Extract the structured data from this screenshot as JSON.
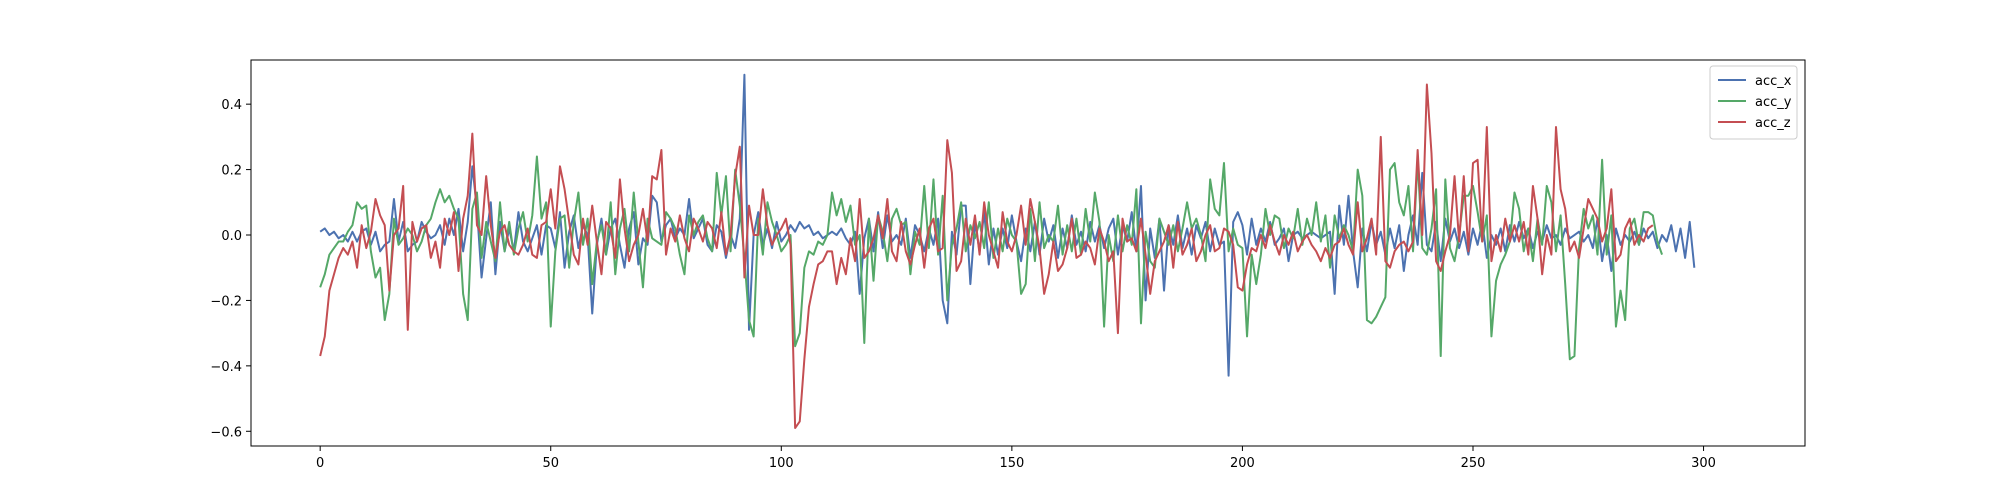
{
  "chart_data": {
    "type": "line",
    "title": "",
    "xlabel": "",
    "ylabel": "",
    "xlim": [
      -15,
      322
    ],
    "ylim": [
      -0.645,
      0.535
    ],
    "xticks": [
      0,
      50,
      100,
      150,
      200,
      250,
      300
    ],
    "yticks": [
      -0.6,
      -0.4,
      -0.2,
      0.0,
      0.2,
      0.4
    ],
    "xtick_labels": [
      "0",
      "50",
      "100",
      "150",
      "200",
      "250",
      "300"
    ],
    "ytick_labels": [
      "−0.6",
      "−0.4",
      "−0.2",
      "0.0",
      "0.2",
      "0.4"
    ],
    "grid": false,
    "legend_position": "top-right",
    "series": [
      {
        "name": "acc_x",
        "color": "#4c72b0",
        "values": [
          0.01,
          0.02,
          0.0,
          0.01,
          -0.01,
          0.0,
          -0.02,
          0.01,
          -0.02,
          0.01,
          0.02,
          -0.03,
          0.01,
          -0.05,
          -0.03,
          -0.02,
          0.11,
          -0.02,
          0.04,
          -0.05,
          -0.03,
          -0.02,
          0.04,
          0.01,
          -0.01,
          0.0,
          0.03,
          -0.03,
          0.05,
          0.0,
          0.08,
          -0.05,
          0.04,
          0.21,
          0.08,
          -0.13,
          -0.01,
          0.1,
          -0.12,
          0.04,
          -0.05,
          0.02,
          -0.05,
          0.07,
          -0.02,
          -0.05,
          -0.01,
          0.03,
          -0.06,
          0.03,
          0.02,
          -0.04,
          0.07,
          -0.1,
          0.01,
          0.06,
          -0.04,
          0.03,
          0.0,
          -0.24,
          -0.03,
          0.05,
          -0.06,
          0.02,
          0.05,
          -0.03,
          -0.1,
          0.02,
          0.07,
          -0.09,
          -0.01,
          -0.03,
          0.12,
          0.1,
          -0.02,
          0.03,
          0.05,
          -0.01,
          0.02,
          0.0,
          0.11,
          -0.01,
          0.02,
          0.05,
          -0.03,
          -0.05,
          0.03,
          0.01,
          -0.07,
          0.0,
          -0.04,
          0.05,
          0.49,
          -0.29,
          0.0,
          0.07,
          -0.03,
          0.02,
          -0.04,
          0.04,
          -0.02,
          0.0,
          0.03,
          0.01,
          0.04,
          0.02,
          0.03,
          0.0,
          0.01,
          -0.01,
          0.0,
          0.01,
          0.0,
          0.02,
          -0.01,
          -0.03,
          0.01,
          -0.18,
          -0.01,
          0.05,
          -0.05,
          0.07,
          -0.04,
          0.06,
          -0.02,
          0.0,
          -0.03,
          0.05,
          -0.07,
          0.03,
          0.0,
          -0.05,
          0.02,
          -0.03,
          0.05,
          -0.2,
          -0.27,
          0.01,
          -0.06,
          0.09,
          0.09,
          -0.15,
          0.04,
          -0.05,
          0.07,
          -0.09,
          0.02,
          -0.06,
          0.02,
          -0.04,
          0.06,
          -0.02,
          -0.08,
          0.02,
          -0.05,
          0.04,
          -0.06,
          0.05,
          -0.02,
          0.03,
          -0.07,
          0.02,
          -0.04,
          0.06,
          -0.03,
          0.01,
          -0.05,
          0.04,
          -0.02,
          0.03,
          -0.04,
          0.02,
          0.05,
          -0.06,
          0.03,
          -0.02,
          0.07,
          -0.05,
          0.15,
          -0.2,
          0.02,
          -0.07,
          0.05,
          -0.17,
          0.03,
          -0.03,
          0.06,
          -0.04,
          0.02,
          -0.06,
          0.03,
          -0.01,
          0.04,
          -0.05,
          0.02,
          -0.03,
          -0.02,
          -0.43,
          0.04,
          0.07,
          0.03,
          -0.06,
          0.05,
          -0.03,
          0.02,
          -0.02,
          0.04,
          -0.03,
          -0.01,
          0.02,
          -0.08,
          0.0,
          0.01,
          -0.01,
          0.0,
          0.01,
          0.0,
          -0.01,
          0.0,
          0.01,
          -0.18,
          0.09,
          -0.03,
          0.12,
          -0.05,
          -0.16,
          0.02,
          -0.05,
          0.04,
          -0.03,
          0.01,
          -0.06,
          0.02,
          -0.04,
          0.03,
          -0.11,
          0.0,
          0.06,
          -0.03,
          0.19,
          -0.03,
          -0.05,
          0.04,
          -0.08,
          0.05,
          -0.02,
          0.02,
          -0.04,
          0.01,
          -0.06,
          0.02,
          -0.03,
          0.04,
          -0.07,
          0.0,
          -0.03,
          0.02,
          -0.05,
          0.03,
          -0.02,
          0.04,
          -0.01,
          0.02,
          -0.04,
          0.01,
          -0.02,
          0.03,
          -0.01,
          0.0,
          -0.03,
          0.02,
          -0.01,
          0.0,
          0.01,
          -0.02,
          0.0,
          -0.04,
          0.05,
          -0.08,
          0.0,
          -0.11,
          0.02,
          -0.03,
          0.0,
          -0.02,
          0.01,
          -0.03,
          0.02,
          -0.01,
          0.01,
          -0.04,
          0.0,
          -0.02,
          0.03,
          -0.05,
          0.02,
          -0.07,
          0.04,
          -0.1
        ]
      },
      {
        "name": "acc_y",
        "color": "#55a868",
        "values": [
          -0.16,
          -0.12,
          -0.06,
          -0.04,
          -0.02,
          -0.02,
          0.01,
          0.03,
          0.1,
          0.08,
          0.09,
          -0.05,
          -0.13,
          -0.1,
          -0.26,
          -0.18,
          0.05,
          -0.03,
          -0.01,
          0.02,
          0.0,
          -0.05,
          -0.02,
          0.03,
          0.05,
          0.1,
          0.14,
          0.1,
          0.12,
          0.08,
          0.05,
          -0.18,
          -0.26,
          0.08,
          0.13,
          -0.07,
          0.04,
          -0.02,
          -0.08,
          0.1,
          -0.05,
          0.04,
          -0.06,
          0.02,
          0.07,
          -0.02,
          0.06,
          0.24,
          0.05,
          0.1,
          -0.28,
          -0.05,
          0.05,
          0.06,
          -0.1,
          0.04,
          0.13,
          -0.03,
          0.05,
          -0.15,
          -0.02,
          0.03,
          -0.06,
          0.1,
          -0.12,
          0.02,
          0.08,
          -0.05,
          0.13,
          -0.02,
          -0.16,
          0.05,
          -0.01,
          -0.02,
          -0.03,
          0.07,
          0.05,
          0.02,
          -0.06,
          -0.12,
          0.06,
          0.0,
          0.04,
          0.06,
          -0.01,
          -0.05,
          0.19,
          0.06,
          0.18,
          -0.05,
          0.2,
          0.09,
          -0.07,
          -0.26,
          -0.31,
          0.05,
          -0.06,
          0.1,
          0.04,
          0.0,
          -0.05,
          -0.03,
          0.0,
          -0.34,
          -0.3,
          -0.1,
          -0.05,
          -0.06,
          -0.02,
          -0.03,
          0.0,
          0.13,
          0.06,
          0.11,
          0.04,
          0.09,
          -0.03,
          0.0,
          -0.33,
          0.05,
          -0.14,
          0.06,
          0.01,
          -0.08,
          0.05,
          0.08,
          0.03,
          0.04,
          -0.12,
          0.01,
          -0.03,
          0.15,
          -0.04,
          0.17,
          -0.06,
          0.12,
          -0.2,
          -0.03,
          0.02,
          0.1,
          -0.05,
          0.03,
          -0.01,
          0.04,
          -0.04,
          0.1,
          -0.07,
          0.02,
          -0.05,
          0.05,
          0.0,
          -0.02,
          -0.18,
          -0.15,
          0.08,
          -0.08,
          0.1,
          -0.04,
          0.0,
          -0.02,
          0.09,
          -0.06,
          0.03,
          -0.05,
          0.05,
          -0.06,
          0.08,
          -0.02,
          0.13,
          0.04,
          -0.28,
          0.0,
          -0.08,
          0.06,
          -0.05,
          0.03,
          -0.03,
          0.14,
          -0.27,
          0.01,
          -0.08,
          -0.1,
          0.05,
          0.01,
          -0.03,
          0.03,
          -0.05,
          0.02,
          0.1,
          0.02,
          0.05,
          0.0,
          -0.08,
          0.17,
          0.08,
          0.06,
          0.22,
          -0.05,
          0.02,
          -0.03,
          -0.04,
          -0.31,
          -0.06,
          -0.15,
          -0.06,
          0.08,
          0.0,
          0.06,
          0.05,
          -0.04,
          0.02,
          -0.01,
          0.08,
          -0.03,
          0.05,
          0.0,
          0.1,
          -0.02,
          0.06,
          -0.1,
          0.06,
          -0.01,
          0.03,
          0.0,
          -0.05,
          0.2,
          0.12,
          -0.26,
          -0.27,
          -0.25,
          -0.22,
          -0.19,
          0.2,
          0.22,
          0.1,
          0.06,
          0.15,
          -0.05,
          0.23,
          -0.04,
          -0.06,
          0.02,
          0.14,
          -0.37,
          0.17,
          -0.04,
          -0.08,
          0.0,
          0.12,
          0.12,
          0.15,
          0.07,
          -0.02,
          0.06,
          -0.31,
          -0.14,
          -0.09,
          -0.06,
          -0.02,
          0.13,
          0.08,
          -0.05,
          0.02,
          -0.08,
          0.05,
          -0.03,
          0.15,
          0.1,
          -0.05,
          0.06,
          -0.15,
          -0.38,
          -0.37,
          -0.04,
          0.08,
          0.02,
          0.06,
          -0.06,
          0.23,
          -0.06,
          0.06,
          -0.28,
          -0.17,
          -0.26,
          0.02,
          0.05,
          -0.03,
          0.07,
          0.07,
          0.06,
          -0.02,
          -0.06
        ]
      },
      {
        "name": "acc_z",
        "color": "#c44e52",
        "values": [
          -0.37,
          -0.31,
          -0.17,
          -0.12,
          -0.07,
          -0.04,
          -0.06,
          -0.02,
          -0.1,
          0.03,
          -0.04,
          0.01,
          0.11,
          0.06,
          0.03,
          -0.17,
          0.0,
          0.02,
          0.15,
          -0.29,
          0.04,
          -0.02,
          0.02,
          0.03,
          -0.07,
          -0.02,
          -0.1,
          0.05,
          0.0,
          0.07,
          -0.11,
          0.05,
          0.12,
          0.31,
          0.03,
          0.0,
          0.18,
          0.03,
          -0.07,
          0.01,
          0.03,
          -0.03,
          -0.05,
          -0.06,
          -0.03,
          0.02,
          -0.06,
          -0.07,
          0.03,
          0.04,
          0.14,
          0.02,
          0.21,
          0.14,
          0.04,
          -0.06,
          -0.09,
          0.05,
          -0.03,
          0.09,
          -0.02,
          -0.12,
          0.04,
          0.02,
          -0.07,
          0.17,
          0.02,
          -0.08,
          -0.03,
          0.0,
          0.08,
          -0.02,
          0.18,
          0.17,
          0.26,
          -0.06,
          0.02,
          -0.02,
          0.06,
          -0.01,
          -0.05,
          0.05,
          0.02,
          -0.02,
          0.04,
          0.02,
          -0.04,
          0.07,
          -0.06,
          0.0,
          0.18,
          0.27,
          -0.13,
          0.09,
          0.0,
          0.0,
          0.14,
          0.03,
          -0.03,
          0.0,
          0.02,
          0.05,
          -0.03,
          -0.59,
          -0.57,
          -0.38,
          -0.22,
          -0.15,
          -0.09,
          -0.08,
          -0.05,
          -0.05,
          -0.15,
          -0.07,
          -0.12,
          -0.01,
          -0.08,
          0.11,
          -0.07,
          -0.05,
          -0.01,
          0.06,
          -0.01,
          0.11,
          -0.05,
          -0.08,
          0.04,
          -0.05,
          -0.09,
          -0.03,
          0.02,
          -0.1,
          0.02,
          0.05,
          -0.05,
          -0.04,
          0.29,
          0.19,
          -0.11,
          -0.08,
          0.05,
          -0.03,
          0.06,
          -0.06,
          0.1,
          0.0,
          -0.05,
          -0.1,
          0.07,
          -0.02,
          -0.05,
          0.0,
          0.09,
          -0.03,
          0.11,
          0.04,
          -0.04,
          -0.18,
          -0.12,
          -0.02,
          -0.11,
          -0.09,
          -0.04,
          0.05,
          -0.07,
          -0.06,
          -0.02,
          -0.04,
          -0.09,
          0.02,
          -0.02,
          -0.08,
          -0.05,
          -0.3,
          0.05,
          -0.02,
          -0.01,
          -0.05,
          0.05,
          -0.06,
          -0.18,
          -0.08,
          -0.05,
          -0.02,
          0.03,
          -0.1,
          0.04,
          -0.06,
          -0.03,
          0.02,
          -0.08,
          -0.05,
          0.0,
          0.03,
          -0.05,
          -0.04,
          0.02,
          0.01,
          -0.03,
          -0.16,
          -0.17,
          -0.09,
          -0.04,
          -0.05,
          0.0,
          -0.04,
          0.03,
          -0.02,
          -0.06,
          0.0,
          -0.03,
          0.01,
          -0.05,
          -0.02,
          0.0,
          -0.03,
          -0.05,
          -0.08,
          -0.04,
          -0.07,
          -0.03,
          -0.02,
          0.02,
          -0.03,
          -0.06,
          0.1,
          -0.05,
          -0.01,
          0.05,
          -0.06,
          0.3,
          -0.08,
          -0.1,
          -0.05,
          -0.03,
          -0.02,
          -0.05,
          -0.02,
          0.26,
          0.0,
          0.46,
          0.25,
          -0.08,
          -0.11,
          -0.05,
          0.0,
          0.18,
          -0.02,
          0.18,
          -0.05,
          0.22,
          0.23,
          -0.02,
          0.33,
          -0.08,
          0.0,
          -0.05,
          0.05,
          -0.02,
          0.03,
          -0.02,
          0.04,
          -0.06,
          0.15,
          0.05,
          -0.12,
          0.0,
          -0.06,
          0.33,
          0.14,
          0.08,
          -0.05,
          -0.02,
          -0.07,
          0.02,
          0.11,
          0.08,
          0.05,
          -0.02,
          0.02,
          0.14,
          -0.08,
          -0.06,
          0.02,
          0.05,
          -0.03,
          0.0,
          -0.02,
          0.02,
          0.03
        ]
      }
    ]
  }
}
